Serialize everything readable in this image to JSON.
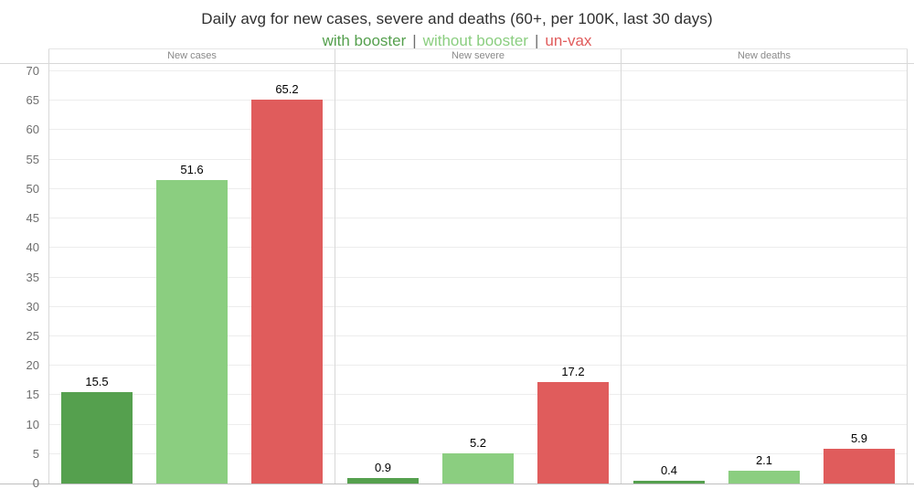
{
  "title": "Daily avg for new cases, severe and deaths (60+, per 100K, last 30 days)",
  "legend": {
    "separator": "|",
    "items": [
      {
        "label": "with booster",
        "color": "#55a04e"
      },
      {
        "label": "without booster",
        "color": "#8bce80"
      },
      {
        "label": "un-vax",
        "color": "#e05c5c"
      }
    ]
  },
  "chart_data": {
    "type": "bar",
    "title": "Daily avg for new cases, severe and deaths (60+, per 100K, last 30 days)",
    "subtitle_legend": "with booster | without booster | un-vax",
    "panels": [
      "New cases",
      "New severe",
      "New deaths"
    ],
    "series": [
      {
        "name": "with booster",
        "color": "#55a04e",
        "values": [
          15.5,
          0.9,
          0.4
        ],
        "labels": [
          "15.5",
          "0.9",
          "0.4"
        ]
      },
      {
        "name": "without booster",
        "color": "#8bce80",
        "values": [
          51.6,
          5.2,
          2.1
        ],
        "labels": [
          "51.6",
          "5.2",
          "2.1"
        ]
      },
      {
        "name": "un-vax",
        "color": "#e05c5c",
        "values": [
          65.2,
          17.2,
          5.9
        ],
        "labels": [
          "65.2",
          "17.2",
          "5.9"
        ]
      }
    ],
    "ylim": [
      0,
      70
    ],
    "yticks": [
      0,
      5,
      10,
      15,
      20,
      25,
      30,
      35,
      40,
      45,
      50,
      55,
      60,
      65,
      70
    ],
    "grid": true,
    "legend_position": "top",
    "value_labels": true
  }
}
